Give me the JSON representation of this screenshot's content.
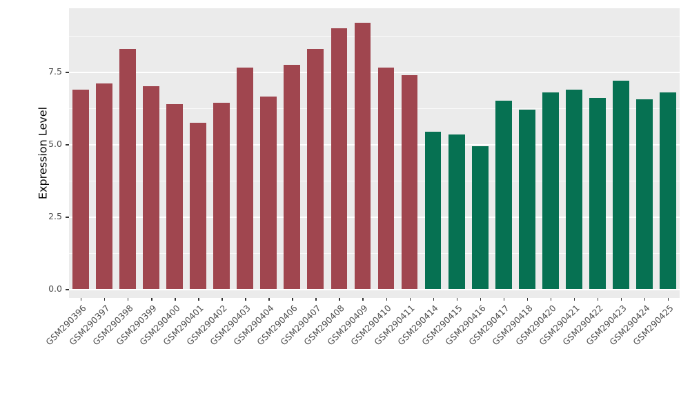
{
  "chart_data": {
    "type": "bar",
    "title": "",
    "xlabel": "",
    "ylabel": "Expression Level",
    "ylim": [
      0,
      9.7
    ],
    "yticks": [
      "0.0",
      "2.5",
      "5.0",
      "7.5"
    ],
    "ytick_values": [
      0,
      2.5,
      5.0,
      7.5
    ],
    "minor_tick_values": [
      1.25,
      3.75,
      6.25,
      8.75
    ],
    "grid": "on",
    "legend": "none",
    "categories": [
      "GSM290396",
      "GSM290397",
      "GSM290398",
      "GSM290399",
      "GSM290400",
      "GSM290401",
      "GSM290402",
      "GSM290403",
      "GSM290404",
      "GSM290406",
      "GSM290407",
      "GSM290408",
      "GSM290409",
      "GSM290410",
      "GSM290411",
      "GSM290414",
      "GSM290415",
      "GSM290416",
      "GSM290417",
      "GSM290418",
      "GSM290420",
      "GSM290421",
      "GSM290422",
      "GSM290423",
      "GSM290424",
      "GSM290425"
    ],
    "values": [
      6.9,
      7.1,
      8.3,
      7.0,
      6.4,
      5.75,
      6.45,
      7.65,
      6.65,
      7.75,
      8.3,
      9.0,
      9.2,
      7.65,
      7.4,
      5.45,
      5.35,
      4.95,
      6.5,
      6.2,
      6.8,
      6.9,
      6.6,
      7.2,
      6.55,
      6.8
    ],
    "bar_color_indices": [
      0,
      0,
      0,
      0,
      0,
      0,
      0,
      0,
      0,
      0,
      0,
      0,
      0,
      0,
      0,
      1,
      1,
      1,
      1,
      1,
      1,
      1,
      1,
      1,
      1,
      1
    ],
    "palette": [
      "#A0464F",
      "#067152"
    ],
    "panel_background": "#EBEBEB",
    "gridline_color": "#FFFFFF",
    "axis_text_color": "#4D4D4D",
    "tick_mark_color": "#333333"
  }
}
